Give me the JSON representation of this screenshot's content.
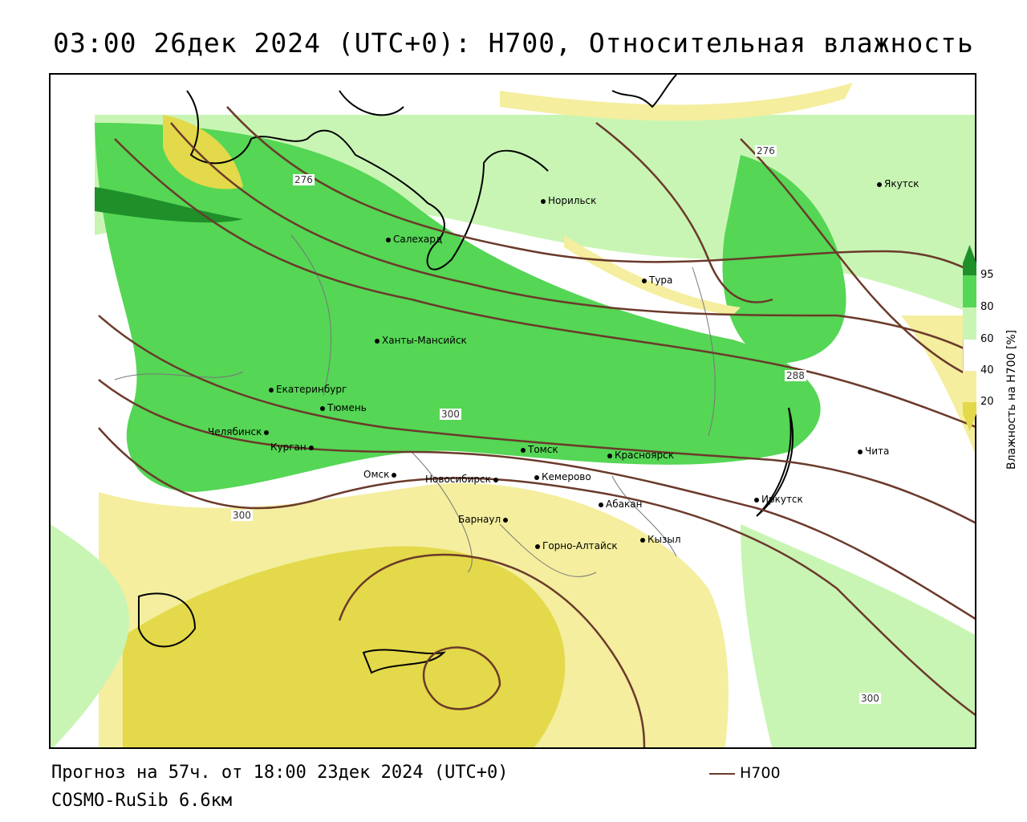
{
  "title": "03:00 26дек 2024 (UTC+0): H700, Относительная влажность",
  "footer": {
    "forecast": "Прогноз на 57ч. от 18:00 23дек 2024 (UTC+0)",
    "model": "COSMO-RuSib 6.6км"
  },
  "legend": {
    "line_label": "H700",
    "line_color": "#6b3a2a"
  },
  "colorbar": {
    "title": "Влажность на H700 [%]",
    "ticks": [
      "95",
      "80",
      "60",
      "40",
      "20"
    ],
    "colors": {
      "very_dry": "#d4c21a",
      "dry": "#e3d94a",
      "moderate_dry": "#f4ee9e",
      "neutral": "#ffffff",
      "moist": "#c8f5b4",
      "wet": "#55d655",
      "very_wet": "#1f8f2a"
    }
  },
  "cities": [
    {
      "name": "Норильск"
    },
    {
      "name": "Якутск"
    },
    {
      "name": "Салехард"
    },
    {
      "name": "Тура"
    },
    {
      "name": "Ханты-Мансийск"
    },
    {
      "name": "Екатеринбург"
    },
    {
      "name": "Тюмень"
    },
    {
      "name": "Челябинск"
    },
    {
      "name": "Курган"
    },
    {
      "name": "Томск"
    },
    {
      "name": "Красноярск"
    },
    {
      "name": "Омск"
    },
    {
      "name": "Новосибирск"
    },
    {
      "name": "Кемерово"
    },
    {
      "name": "Абакан"
    },
    {
      "name": "Барнаул"
    },
    {
      "name": "Горно-Алтайск"
    },
    {
      "name": "Кызыл"
    },
    {
      "name": "Иркутск"
    },
    {
      "name": "Чита"
    }
  ],
  "contour_labels": [
    "276",
    "276",
    "288",
    "300",
    "300",
    "300"
  ]
}
